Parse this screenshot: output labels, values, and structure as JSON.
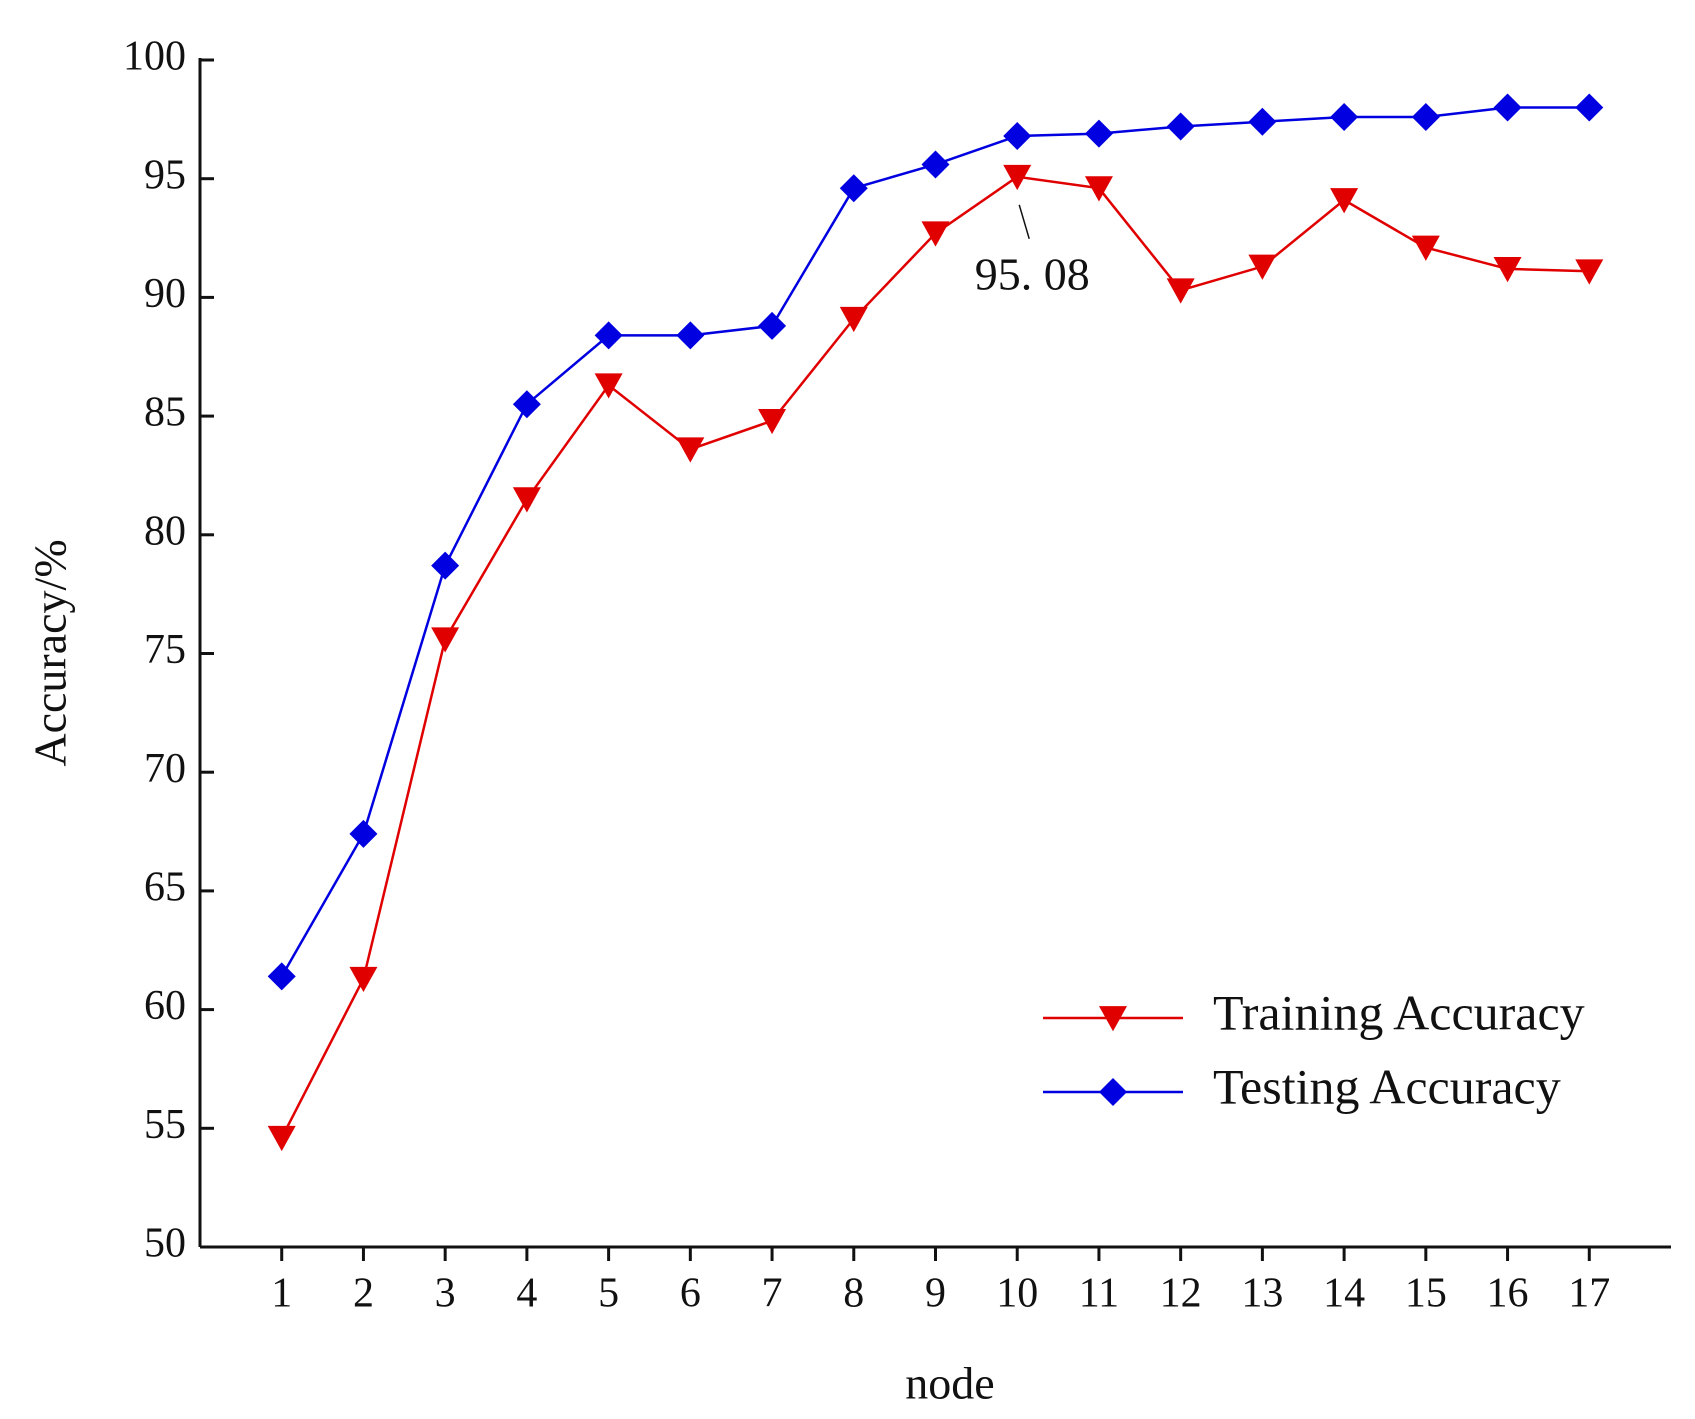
{
  "chart_data": {
    "type": "line",
    "x_label": "node",
    "y_label": "Accuracy/%",
    "x": [
      1,
      2,
      3,
      4,
      5,
      6,
      7,
      8,
      9,
      10,
      11,
      12,
      13,
      14,
      15,
      16,
      17
    ],
    "xlim": [
      0,
      18
    ],
    "xticks": [
      1,
      2,
      3,
      4,
      5,
      6,
      7,
      8,
      9,
      10,
      11,
      12,
      13,
      14,
      15,
      16,
      17
    ],
    "ylim": [
      50,
      100
    ],
    "yticks": [
      50,
      55,
      60,
      65,
      70,
      75,
      80,
      85,
      90,
      95,
      100
    ],
    "legend": "lower right",
    "series": [
      {
        "name": "Training Accuracy",
        "color": "#e00000",
        "marker": "triangle-down",
        "values": [
          54.6,
          61.3,
          75.6,
          81.5,
          86.3,
          83.6,
          84.8,
          89.1,
          92.7,
          95.08,
          94.6,
          90.3,
          91.3,
          94.1,
          92.1,
          91.2,
          91.1
        ]
      },
      {
        "name": "Testing Accuracy",
        "color": "#0000e0",
        "marker": "diamond",
        "values": [
          61.4,
          67.4,
          78.7,
          85.5,
          88.4,
          88.4,
          88.8,
          94.6,
          95.6,
          96.8,
          96.9,
          97.2,
          97.4,
          97.6,
          97.6,
          98.0,
          98.0
        ]
      }
    ],
    "annotations": [
      {
        "text": "95. 08",
        "series": 0,
        "index": 9
      }
    ]
  }
}
